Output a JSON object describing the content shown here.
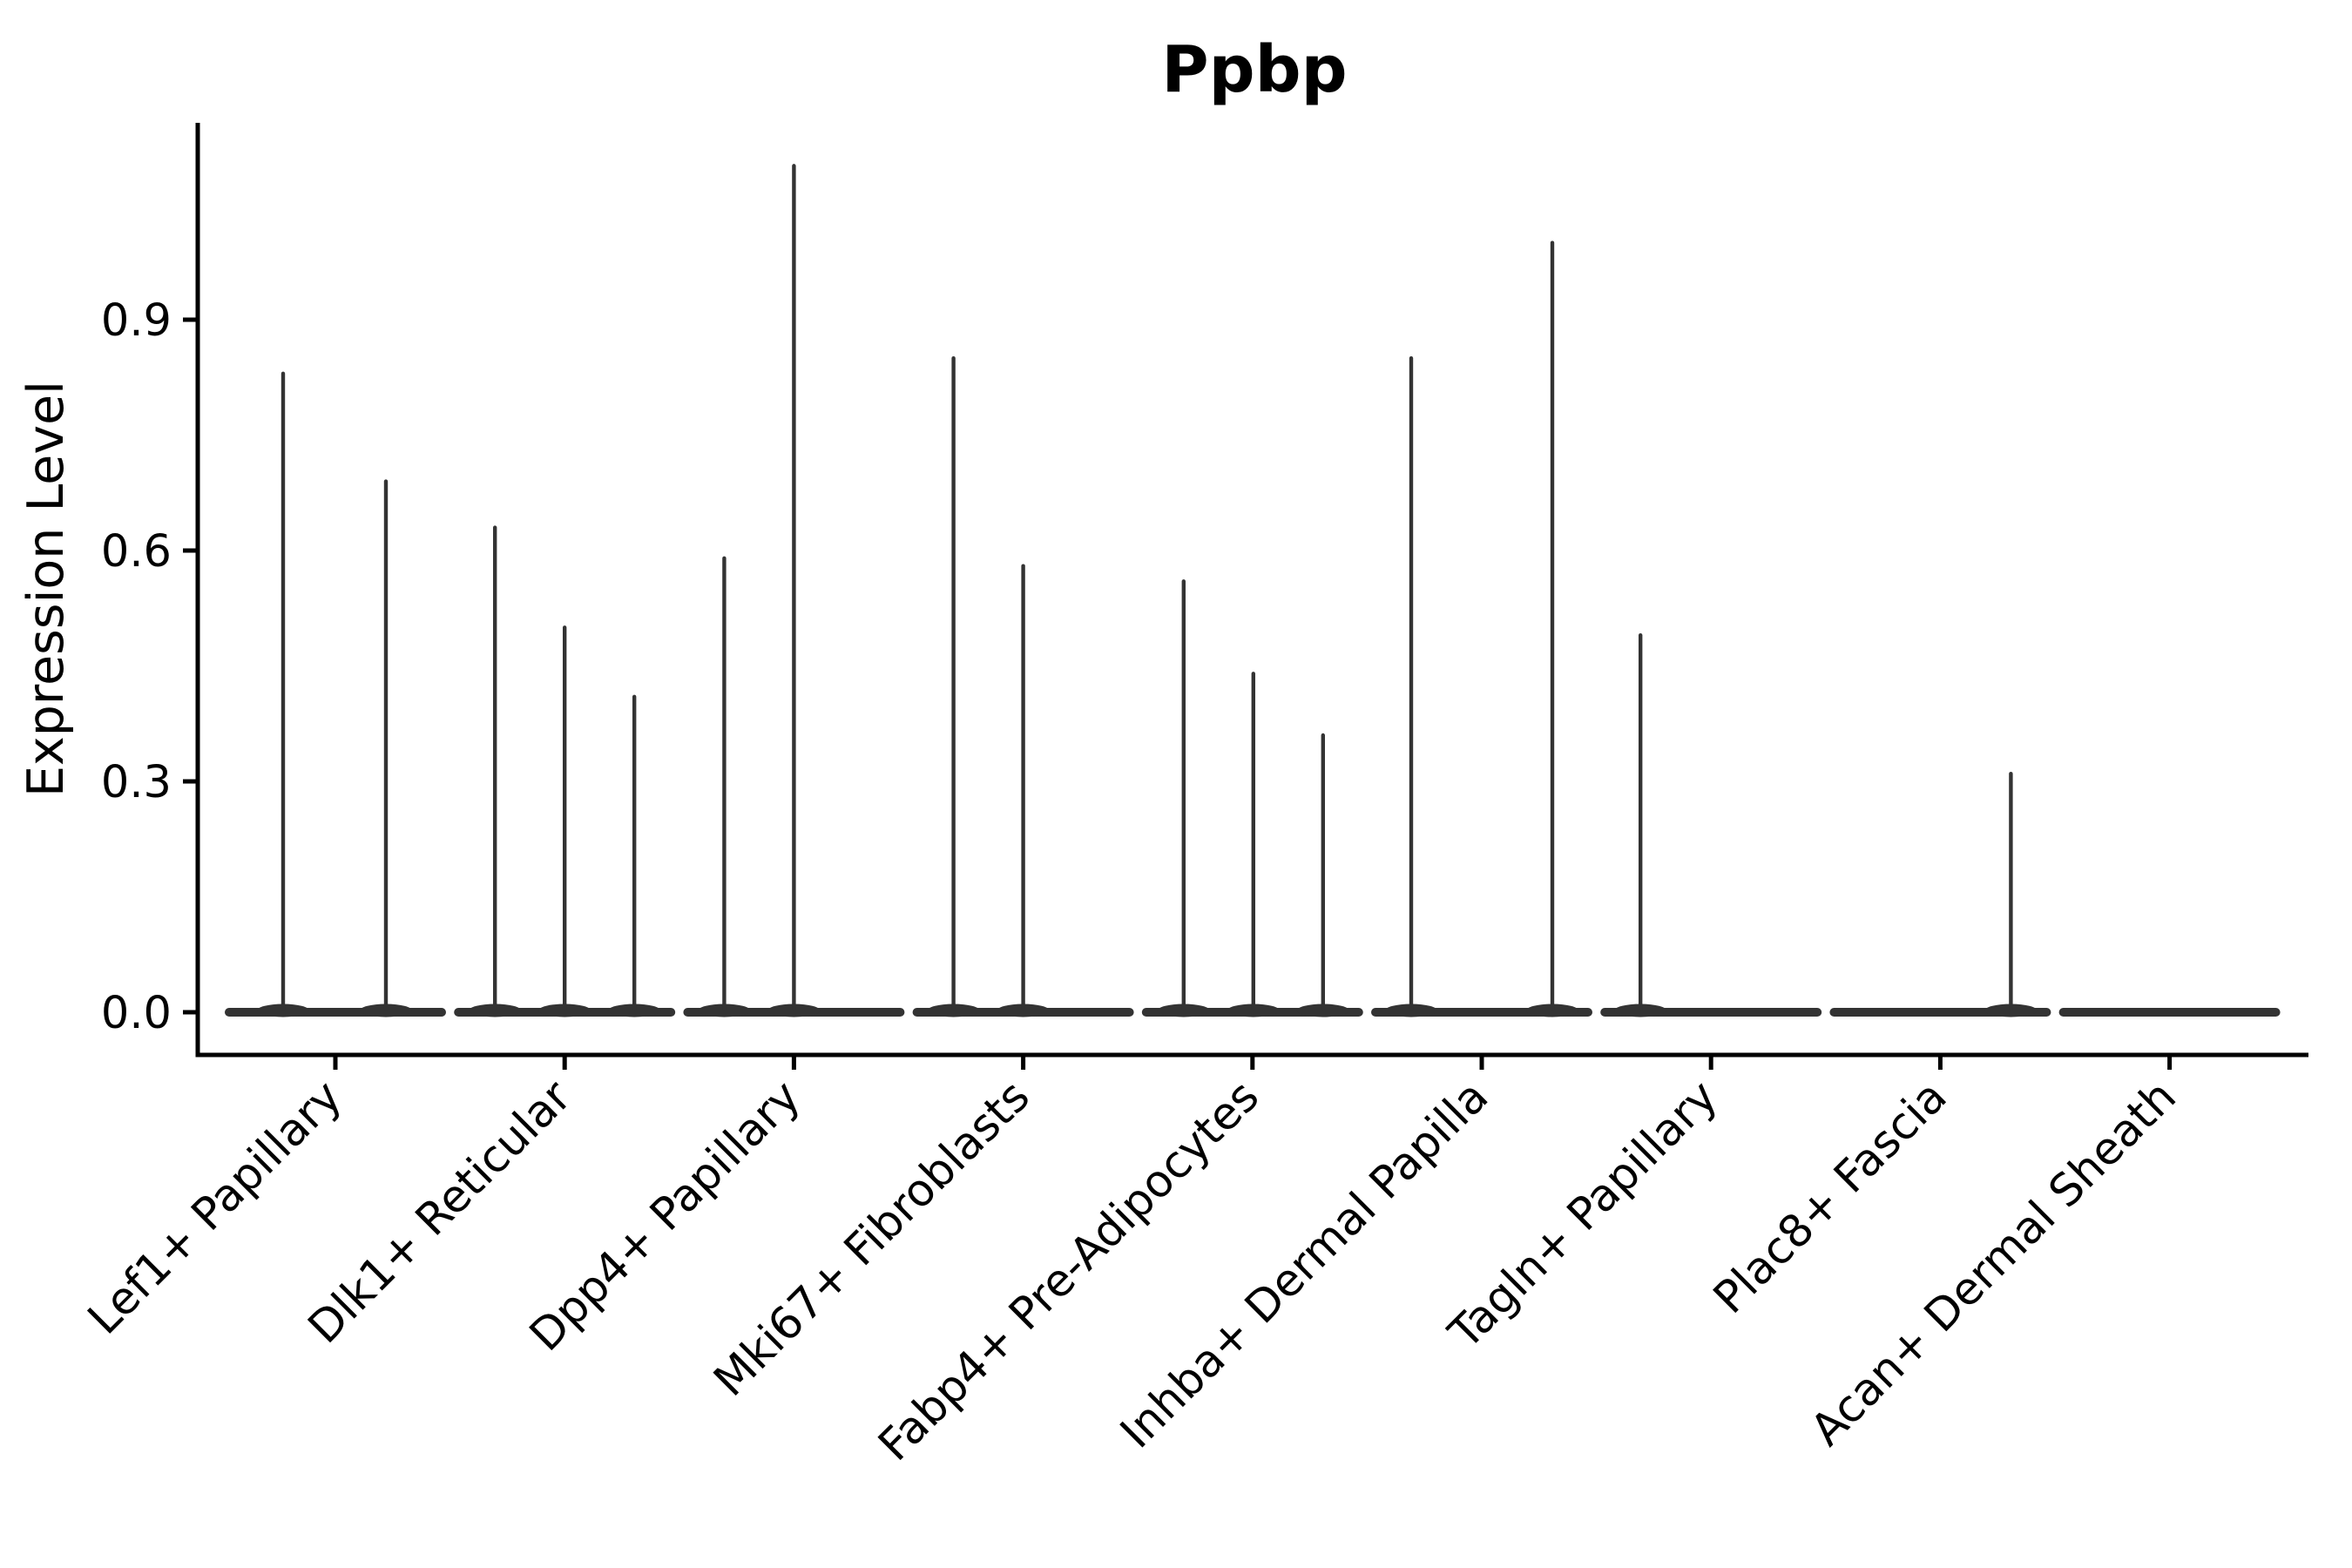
{
  "chart_data": {
    "type": "violin",
    "title": "Ppbp",
    "xlabel": "",
    "ylabel": "Expression Level",
    "yticks": [
      "0.0",
      "0.3",
      "0.6",
      "0.9"
    ],
    "ytick_values": [
      0.0,
      0.3,
      0.6,
      0.9
    ],
    "ylim": [
      0.0,
      1.16
    ],
    "grid": false,
    "legend": false,
    "x_tick_rotation_degrees": 45,
    "colors": {
      "violin": "#333333",
      "axis": "#000000",
      "text": "#000000",
      "background": "#ffffff"
    },
    "categories": [
      "Lef1+ Papillary",
      "Dlk1+ Reticular",
      "Dpp4+ Papillary",
      "Mki67+ Fibroblasts",
      "Fabp4+ Pre-Adipocytes",
      "Inhba+ Dermal Papilla",
      "Tagln+ Papillary",
      "Plac8+ Fascia",
      "Acan+ Dermal Sheath"
    ],
    "groups": [
      {
        "category": "Lef1+ Papillary",
        "violins": [
          {
            "dx": -60,
            "max": 0.83
          },
          {
            "dx": 58,
            "max": 0.69
          }
        ]
      },
      {
        "category": "Dlk1+ Reticular",
        "violins": [
          {
            "dx": -80,
            "max": 0.63
          },
          {
            "dx": 0,
            "max": 0.5
          },
          {
            "dx": 80,
            "max": 0.41
          }
        ]
      },
      {
        "category": "Dpp4+ Papillary",
        "violins": [
          {
            "dx": -80,
            "max": 0.59
          },
          {
            "dx": 0,
            "max": 1.1
          }
        ]
      },
      {
        "category": "Mki67+ Fibroblasts",
        "violins": [
          {
            "dx": -80,
            "max": 0.85
          },
          {
            "dx": 0,
            "max": 0.58
          }
        ]
      },
      {
        "category": "Fabp4+ Pre-Adipocytes",
        "violins": [
          {
            "dx": -79,
            "max": 0.56
          },
          {
            "dx": 1,
            "max": 0.44
          },
          {
            "dx": 81,
            "max": 0.36
          }
        ]
      },
      {
        "category": "Inhba+ Dermal Papilla",
        "violins": [
          {
            "dx": -81,
            "max": 0.85
          },
          {
            "dx": 81,
            "max": 1.0
          }
        ]
      },
      {
        "category": "Tagln+ Papillary",
        "violins": [
          {
            "dx": -81,
            "max": 0.49
          }
        ]
      },
      {
        "category": "Plac8+ Fascia",
        "violins": [
          {
            "dx": 81,
            "max": 0.31
          }
        ]
      },
      {
        "category": "Acan+ Dermal Sheath",
        "violins": []
      }
    ]
  }
}
